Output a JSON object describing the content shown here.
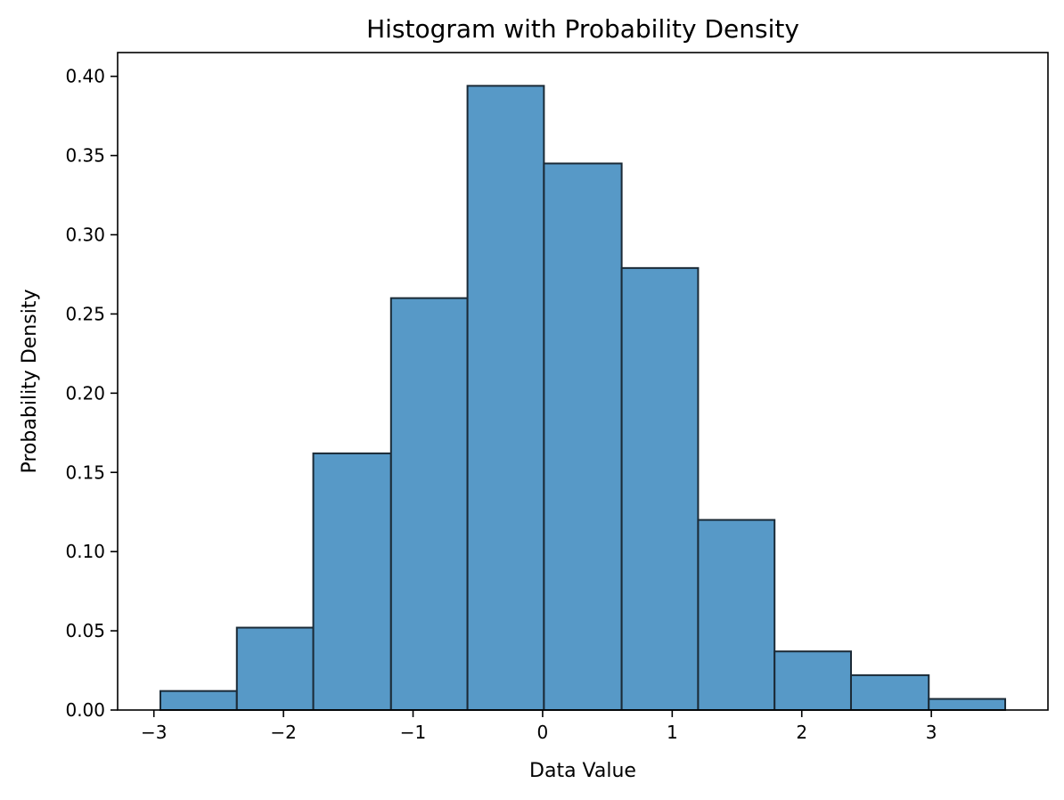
{
  "chart_data": {
    "type": "bar",
    "title": "Histogram with Probability Density",
    "xlabel": "Data Value",
    "ylabel": "Probability Density",
    "bin_edges": [
      -2.95,
      -2.36,
      -1.77,
      -1.17,
      -0.58,
      0.01,
      0.61,
      1.2,
      1.79,
      2.38,
      2.98,
      3.57
    ],
    "values": [
      0.012,
      0.052,
      0.162,
      0.26,
      0.394,
      0.345,
      0.279,
      0.12,
      0.037,
      0.022,
      0.007
    ],
    "xlim": [
      -3.28,
      3.9
    ],
    "ylim": [
      0,
      0.415
    ],
    "xticks": [
      {
        "value": -3,
        "label": "−3"
      },
      {
        "value": -2,
        "label": "−2"
      },
      {
        "value": -1,
        "label": "−1"
      },
      {
        "value": 0,
        "label": "0"
      },
      {
        "value": 1,
        "label": "1"
      },
      {
        "value": 2,
        "label": "2"
      },
      {
        "value": 3,
        "label": "3"
      }
    ],
    "yticks": [
      {
        "value": 0.0,
        "label": "0.00"
      },
      {
        "value": 0.05,
        "label": "0.05"
      },
      {
        "value": 0.1,
        "label": "0.10"
      },
      {
        "value": 0.15,
        "label": "0.15"
      },
      {
        "value": 0.2,
        "label": "0.20"
      },
      {
        "value": 0.25,
        "label": "0.25"
      },
      {
        "value": 0.3,
        "label": "0.30"
      },
      {
        "value": 0.35,
        "label": "0.35"
      },
      {
        "value": 0.4,
        "label": "0.40"
      }
    ],
    "grid": false,
    "bar_color": "#5799c7",
    "edge_color": "#1b2a36"
  }
}
